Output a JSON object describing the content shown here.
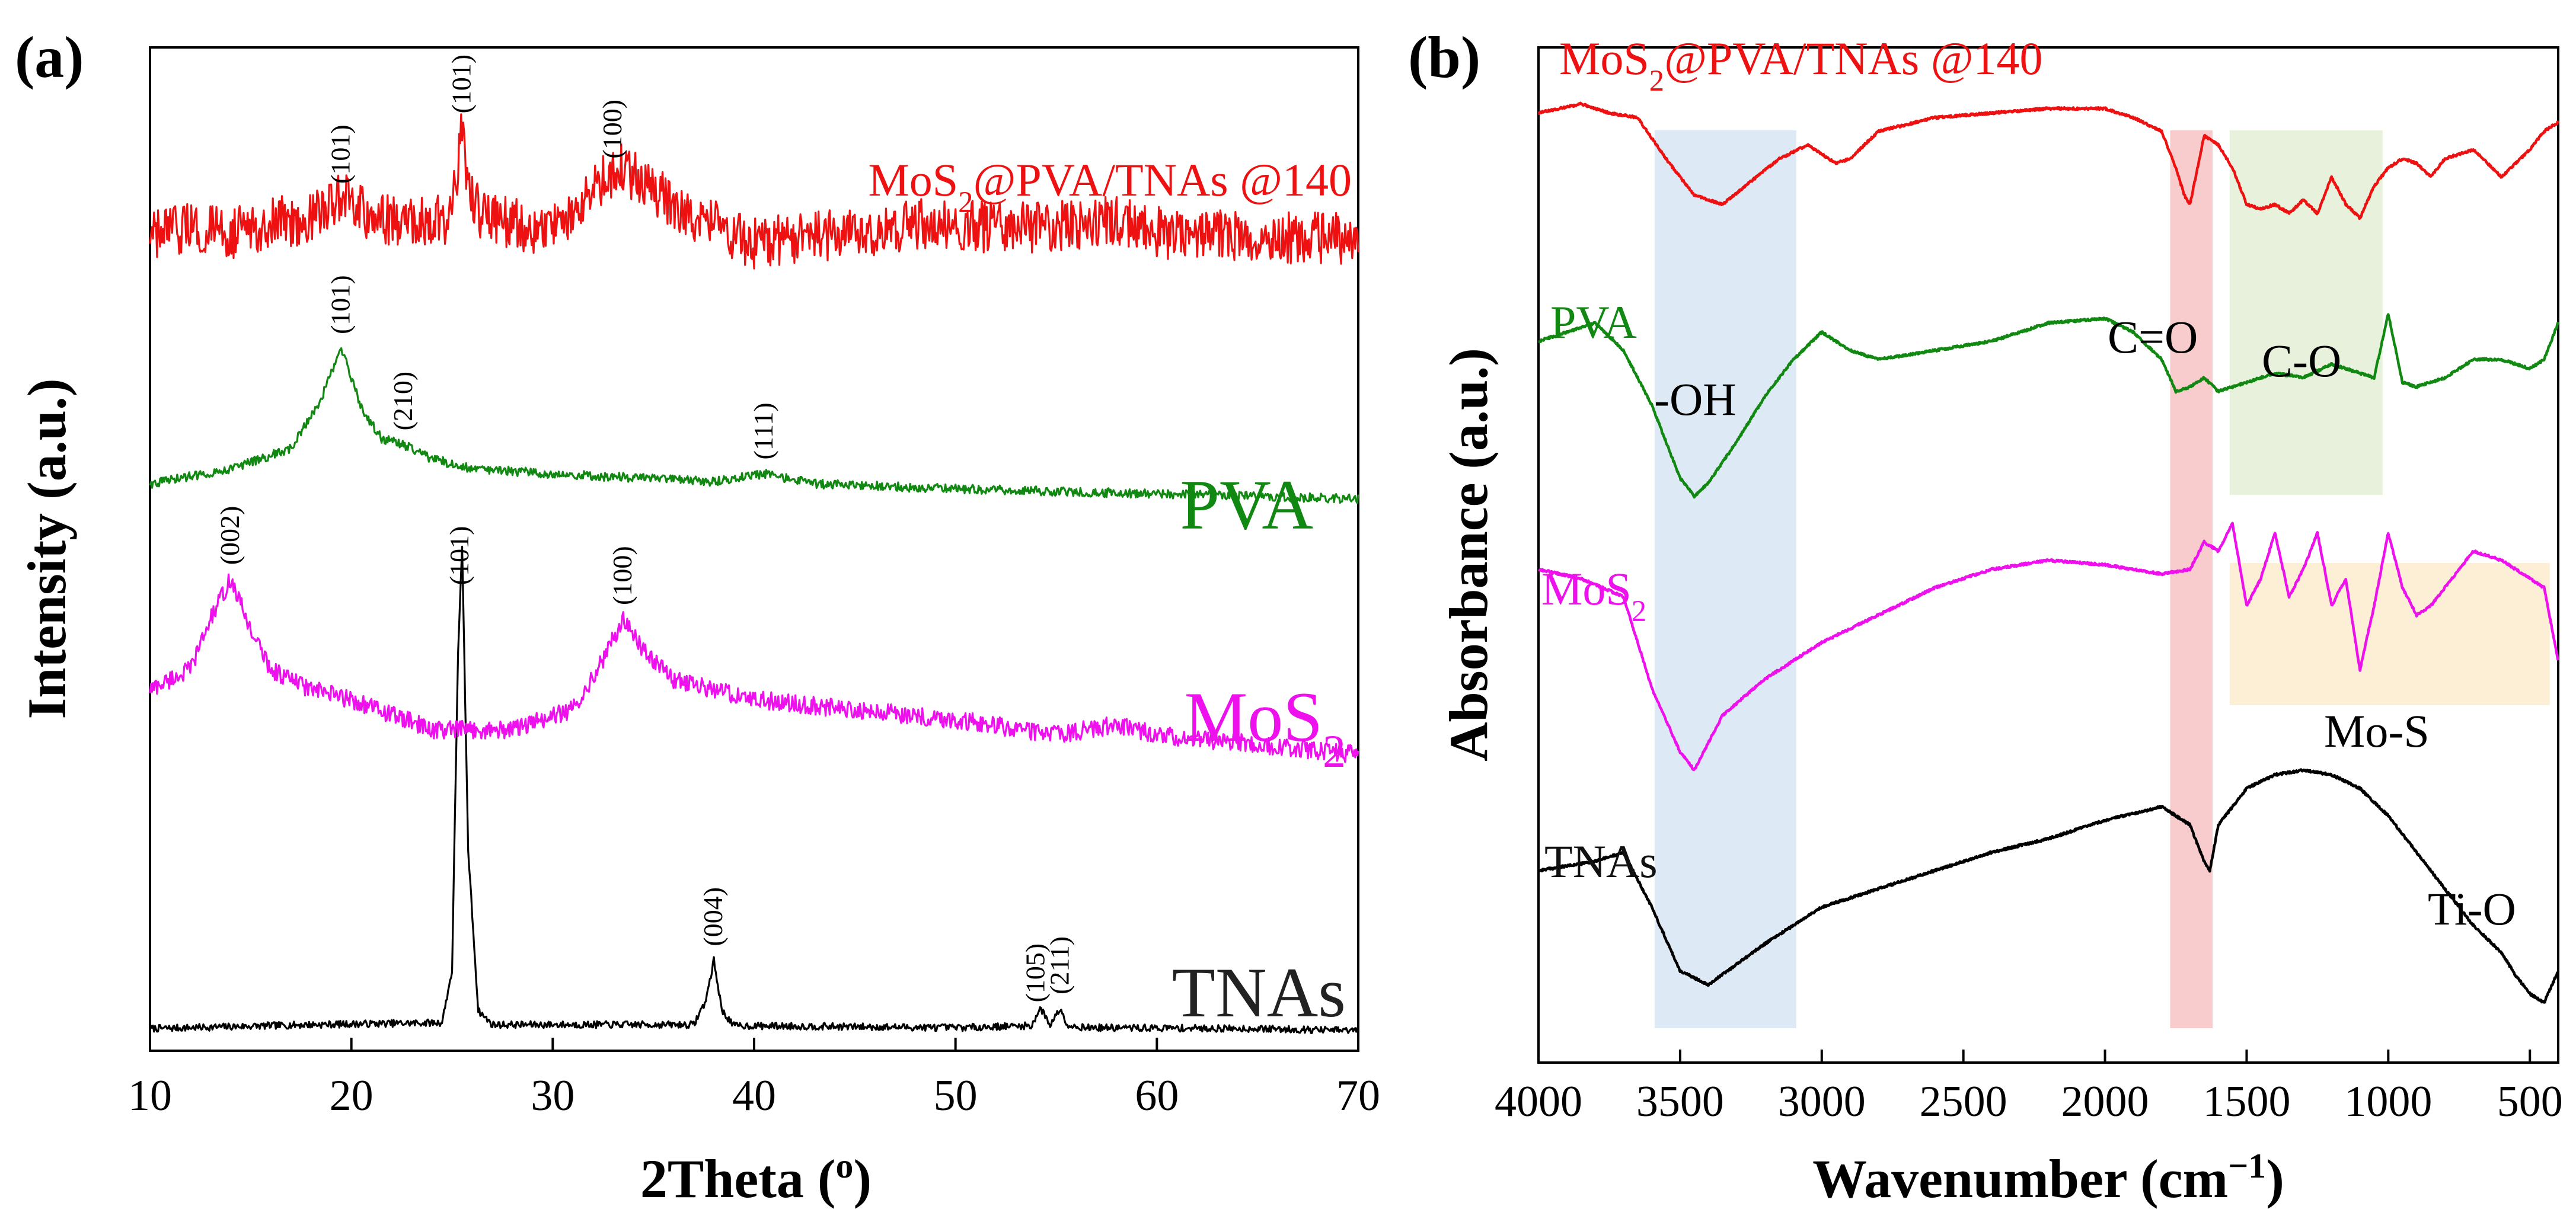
{
  "figure": {
    "panel_a_label": "(a)",
    "panel_b_label": "(b)"
  },
  "chart_data": [
    {
      "type": "line",
      "panel": "(a)",
      "title": "",
      "xlabel": "2Theta (o)",
      "ylabel": "Intensity (a.u.)",
      "xlim": [
        10,
        70
      ],
      "ylim": [
        0,
        100
      ],
      "xticks": [
        10,
        20,
        30,
        40,
        50,
        60,
        70
      ],
      "grid": false,
      "series": [
        {
          "name": "TNAs",
          "color": "#000000",
          "offset": 0,
          "x": [
            10,
            18,
            24.5,
            25.0,
            25.3,
            25.5,
            25.8,
            26.3,
            27,
            37,
            37.6,
            38.0,
            38.4,
            39,
            50,
            53.8,
            54.2,
            54.7,
            55.2,
            55.6,
            56.5,
            65,
            70
          ],
          "y": [
            2.2,
            2.6,
            2.8,
            8,
            40,
            50,
            20,
            4,
            2.6,
            2.6,
            5,
            9,
            4,
            2.5,
            2.3,
            2.5,
            4.3,
            2.6,
            4.2,
            2.5,
            2.3,
            2.2,
            2
          ]
        },
        {
          "name": "MoS2",
          "color": "#EE11EE",
          "offset": 0,
          "x": [
            10,
            12,
            13,
            14,
            15,
            16,
            18,
            20,
            24,
            28,
            31,
            32.5,
            33.5,
            34.5,
            36,
            40,
            45,
            50,
            55,
            58,
            60,
            65,
            70
          ],
          "y": [
            36,
            38,
            43,
            47,
            42,
            38,
            36,
            35,
            32,
            32,
            34,
            39,
            43,
            40,
            37,
            35,
            34,
            33,
            31.5,
            32.5,
            31.5,
            30.5,
            29.5
          ]
        },
        {
          "name": "PVA",
          "color": "#118811",
          "offset": 0,
          "x": [
            10,
            14,
            17,
            18.5,
            19.5,
            20.5,
            21.5,
            22.5,
            24,
            26,
            30,
            35,
            38,
            40.5,
            43,
            50,
            60,
            70
          ],
          "y": [
            56.5,
            58,
            60,
            65,
            70,
            64,
            61,
            60.5,
            59,
            58,
            57.5,
            57,
            56.7,
            57.5,
            56.5,
            56,
            55.5,
            55
          ]
        },
        {
          "name": "MoS2@PVA/TNAs @140",
          "color": "#EE1111",
          "offset": 0,
          "x": [
            10,
            12,
            14,
            16,
            18,
            19.5,
            21,
            23,
            24.8,
            25.2,
            25.5,
            25.8,
            26.5,
            29,
            31,
            32.5,
            33.5,
            35,
            37,
            40,
            42,
            45,
            48,
            52,
            55,
            57.5,
            60,
            65,
            70
          ],
          "y": [
            81,
            82,
            81.5,
            82.5,
            83,
            85,
            83,
            82.5,
            83,
            87,
            92,
            86,
            83,
            82,
            83,
            87,
            88,
            86,
            83,
            80.5,
            81,
            81.5,
            82.5,
            82,
            82,
            83,
            81.5,
            81,
            81
          ]
        }
      ],
      "series_labels": [
        "MoS2@PVA/TNAs @140",
        "PVA",
        "MoS2",
        "TNAs"
      ],
      "peak_annotations": [
        {
          "series": "TNAs",
          "x": 25.4,
          "text": "(101)"
        },
        {
          "series": "TNAs",
          "x": 38.0,
          "text": "(004)"
        },
        {
          "series": "TNAs",
          "x": 54.0,
          "text": "(105)"
        },
        {
          "series": "TNAs",
          "x": 55.2,
          "text": "(211)"
        },
        {
          "series": "MoS2",
          "x": 14.0,
          "text": "(002)"
        },
        {
          "series": "MoS2",
          "x": 33.5,
          "text": "(100)"
        },
        {
          "series": "PVA",
          "x": 19.5,
          "text": "(101)"
        },
        {
          "series": "PVA",
          "x": 22.6,
          "text": "(210)"
        },
        {
          "series": "PVA",
          "x": 40.5,
          "text": "(111)"
        },
        {
          "series": "MoS2@PVA/TNAs @140",
          "x": 19.5,
          "text": "(101)"
        },
        {
          "series": "MoS2@PVA/TNAs @140",
          "x": 25.5,
          "text": "(101)"
        },
        {
          "series": "MoS2@PVA/TNAs @140",
          "x": 33.0,
          "text": "(100)"
        }
      ]
    },
    {
      "type": "line",
      "panel": "(b)",
      "title": "",
      "xlabel": "Wavenumber (cm−1)",
      "ylabel": "Absorbance (a.u.)",
      "xlim": [
        4000,
        400
      ],
      "ylim": [
        0,
        100
      ],
      "xticks": [
        4000,
        3500,
        3000,
        2500,
        2000,
        1500,
        1000,
        500
      ],
      "grid": false,
      "series": [
        {
          "name": "TNAs",
          "color": "#000000",
          "x": [
            4000,
            3800,
            3700,
            3600,
            3500,
            3400,
            3200,
            3000,
            2800,
            2600,
            2400,
            2200,
            2000,
            1800,
            1750,
            1700,
            1650,
            1630,
            1600,
            1500,
            1400,
            1300,
            1200,
            1100,
            1000,
            900,
            800,
            700,
            600,
            550,
            500,
            450,
            400
          ],
          "y": [
            15,
            16,
            17,
            11,
            4,
            2.5,
            7,
            11,
            13,
            15,
            17,
            18.5,
            20.5,
            22,
            21,
            20,
            16,
            15,
            20,
            24,
            25.5,
            26,
            25.5,
            24,
            21,
            17,
            13,
            9,
            6,
            3.5,
            1.5,
            0.5,
            4
          ]
        },
        {
          "name": "MoS2",
          "color": "#EE11EE",
          "x": [
            4000,
            3850,
            3700,
            3600,
            3500,
            3450,
            3350,
            3200,
            3000,
            2800,
            2600,
            2400,
            2200,
            2000,
            1800,
            1700,
            1650,
            1600,
            1550,
            1500,
            1450,
            1400,
            1350,
            1300,
            1250,
            1200,
            1150,
            1100,
            1050,
            1000,
            950,
            900,
            850,
            800,
            700,
            600,
            500,
            450,
            400
          ],
          "y": [
            48,
            47,
            45,
            35,
            28,
            26,
            32,
            36,
            40,
            43,
            46,
            48,
            49,
            48.5,
            47.5,
            48,
            51,
            50,
            53,
            44,
            47,
            52,
            45,
            48,
            52,
            44,
            47,
            37,
            44,
            52,
            46,
            43,
            44,
            46,
            50,
            49,
            47,
            46,
            38
          ]
        },
        {
          "name": "PVA",
          "color": "#118811",
          "x": [
            4000,
            3900,
            3800,
            3700,
            3600,
            3500,
            3450,
            3400,
            3300,
            3200,
            3100,
            3000,
            2900,
            2800,
            2600,
            2400,
            2300,
            2200,
            2000,
            1900,
            1800,
            1750,
            1700,
            1650,
            1600,
            1500,
            1400,
            1300,
            1200,
            1100,
            1050,
            1000,
            950,
            900,
            800,
            700,
            600,
            500,
            450,
            400
          ],
          "y": [
            73,
            74,
            75,
            72,
            66,
            58,
            56,
            57.5,
            62,
            67,
            71,
            74,
            72,
            71,
            72,
            73,
            74,
            75,
            75.5,
            74,
            71,
            67.5,
            68,
            69,
            67.5,
            68.5,
            69.5,
            69,
            70.5,
            69.5,
            69,
            76,
            68.5,
            68,
            69,
            71,
            71,
            70,
            71,
            75
          ]
        },
        {
          "name": "MoS2@PVA/TNAs @140",
          "color": "#EE1111",
          "x": [
            4000,
            3850,
            3750,
            3650,
            3550,
            3450,
            3350,
            3250,
            3150,
            3050,
            2950,
            2900,
            2800,
            2600,
            2400,
            2200,
            2000,
            1900,
            1800,
            1750,
            1720,
            1700,
            1650,
            1600,
            1550,
            1500,
            1450,
            1400,
            1350,
            1300,
            1250,
            1200,
            1150,
            1100,
            1050,
            1000,
            950,
            900,
            850,
            800,
            700,
            600,
            500,
            450,
            400
          ],
          "y": [
            98,
            99,
            98,
            97.5,
            93,
            89,
            88,
            90.5,
            93,
            94.5,
            92.5,
            93,
            96,
            97.5,
            98,
            98.5,
            98.5,
            97.5,
            96,
            92,
            89,
            88,
            95.5,
            94.5,
            92,
            88,
            87.5,
            88,
            87,
            88.5,
            87,
            91,
            88,
            86.5,
            90,
            92,
            93,
            92.5,
            91,
            93,
            94,
            91,
            94,
            96,
            97
          ]
        }
      ],
      "series_labels": [
        "MoS2@PVA/TNAs @140",
        "PVA",
        "MoS2",
        "TNAs"
      ],
      "bands": [
        {
          "label": "-OH",
          "x_from": 3590,
          "x_to": 3090,
          "color": "#DDEAF5"
        },
        {
          "label": "C=O",
          "x_from": 1770,
          "x_to": 1620,
          "color": "#F8CCCC"
        },
        {
          "label": "C-O",
          "x_from": 1560,
          "x_to": 1020,
          "color": "#E8F1DC"
        },
        {
          "label": "Mo-S",
          "x_from": 1560,
          "x_to": 430,
          "color": "#FCEFD6"
        }
      ],
      "annotations": [
        "Ti-O"
      ]
    }
  ]
}
